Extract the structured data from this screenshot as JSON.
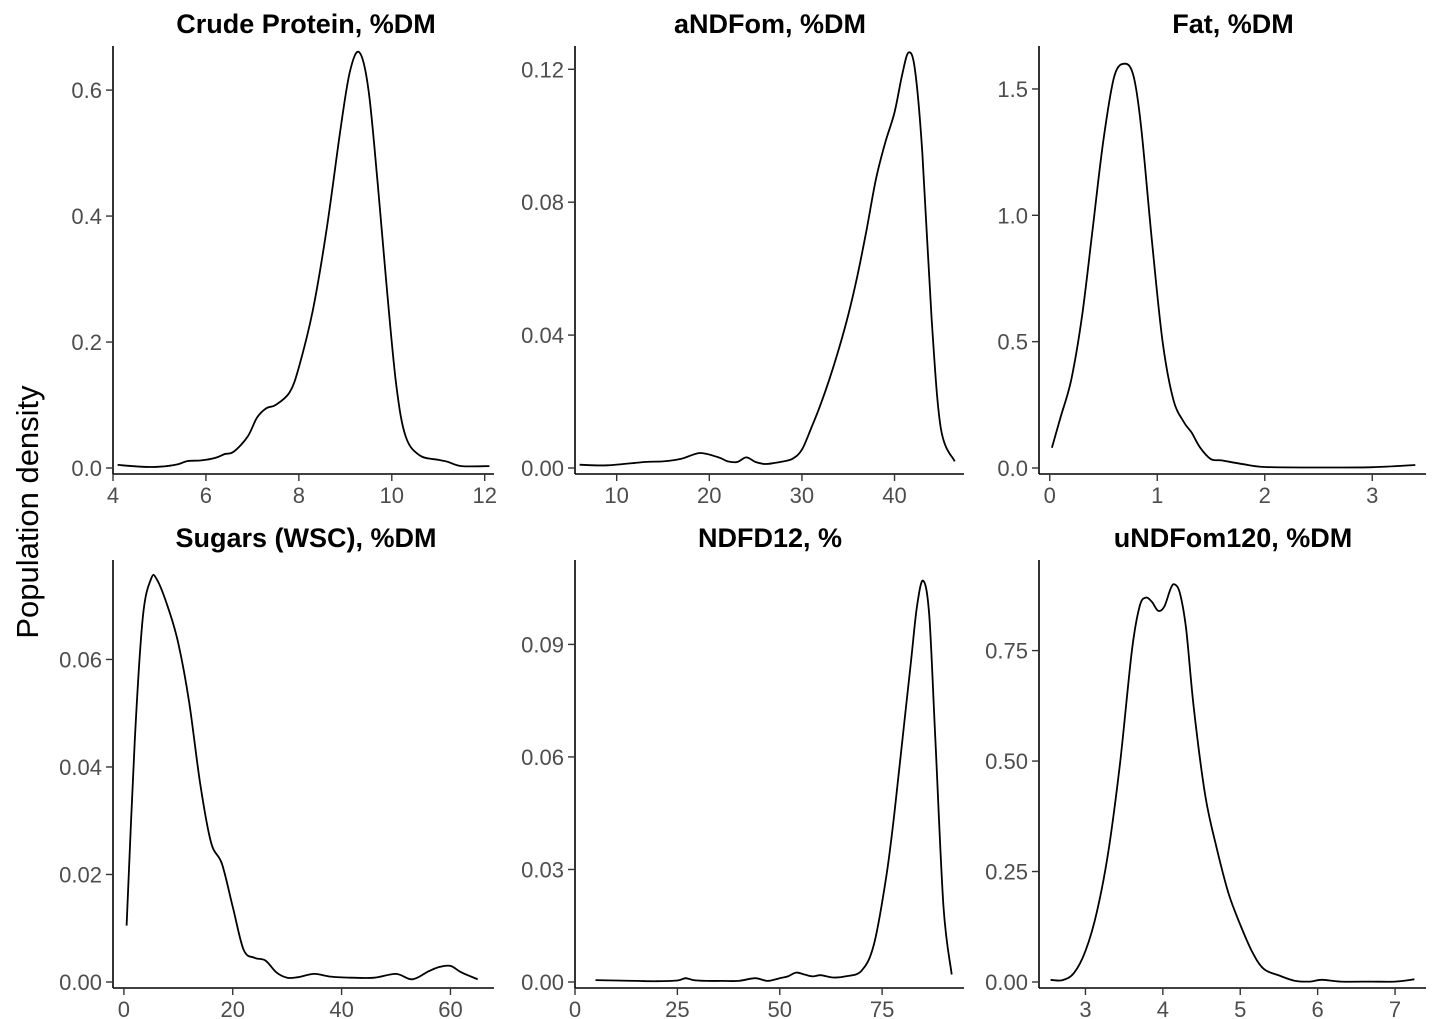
{
  "figure": {
    "ylabel": "Population density"
  },
  "chart_data": [
    {
      "type": "line",
      "title": "Crude Protein, %DM",
      "xlim": [
        4.0,
        12.2
      ],
      "ylim": [
        0.0,
        0.67
      ],
      "x_ticks": [
        4,
        6,
        8,
        10,
        12
      ],
      "x_tick_labels": [
        "4",
        "6",
        "8",
        "10",
        "12"
      ],
      "y_ticks": [
        0.0,
        0.2,
        0.4,
        0.6
      ],
      "y_tick_labels": [
        "0.0",
        "0.2",
        "0.4",
        "0.6"
      ],
      "series": [
        {
          "x": [
            4.1,
            4.6,
            5.0,
            5.4,
            5.6,
            5.9,
            6.2,
            6.4,
            6.6,
            6.9,
            7.1,
            7.3,
            7.5,
            7.8,
            8.0,
            8.3,
            8.6,
            8.9,
            9.1,
            9.3,
            9.5,
            9.7,
            9.9,
            10.1,
            10.3,
            10.6,
            11.0,
            11.2,
            11.5,
            12.1
          ],
          "y": [
            0.005,
            0.002,
            0.002,
            0.006,
            0.011,
            0.012,
            0.016,
            0.022,
            0.026,
            0.05,
            0.08,
            0.095,
            0.1,
            0.12,
            0.16,
            0.25,
            0.38,
            0.54,
            0.63,
            0.66,
            0.6,
            0.45,
            0.28,
            0.13,
            0.05,
            0.02,
            0.013,
            0.01,
            0.003,
            0.003
          ]
        }
      ]
    },
    {
      "type": "line",
      "title": "aNDFom, %DM",
      "xlim": [
        5.5,
        47.5
      ],
      "ylim": [
        0.0,
        0.127
      ],
      "x_ticks": [
        10,
        20,
        30,
        40
      ],
      "x_tick_labels": [
        "10",
        "20",
        "30",
        "40"
      ],
      "y_ticks": [
        0.0,
        0.04,
        0.08,
        0.12
      ],
      "y_tick_labels": [
        "0.00",
        "0.04",
        "0.08",
        "0.12"
      ],
      "series": [
        {
          "x": [
            6,
            9,
            13,
            15,
            17,
            19,
            21,
            22,
            23,
            24,
            25,
            26,
            27,
            28,
            29,
            30,
            31,
            32,
            33,
            34,
            35,
            36,
            37,
            38,
            39,
            40,
            40.8,
            41.5,
            42.2,
            43,
            44,
            45,
            46.5
          ],
          "y": [
            0.001,
            0.0008,
            0.0018,
            0.002,
            0.0028,
            0.0045,
            0.0032,
            0.002,
            0.0018,
            0.0032,
            0.0018,
            0.0012,
            0.0015,
            0.002,
            0.0028,
            0.0055,
            0.012,
            0.019,
            0.027,
            0.036,
            0.046,
            0.058,
            0.072,
            0.087,
            0.098,
            0.107,
            0.118,
            0.125,
            0.12,
            0.095,
            0.045,
            0.012,
            0.002
          ]
        }
      ]
    },
    {
      "type": "line",
      "title": "Fat, %DM",
      "xlim": [
        -0.1,
        3.5
      ],
      "ylim": [
        0.0,
        1.67
      ],
      "x_ticks": [
        0,
        1,
        2,
        3
      ],
      "x_tick_labels": [
        "0",
        "1",
        "2",
        "3"
      ],
      "y_ticks": [
        0.0,
        0.5,
        1.0,
        1.5
      ],
      "y_tick_labels": [
        "0.0",
        "0.5",
        "1.0",
        "1.5"
      ],
      "series": [
        {
          "x": [
            0.02,
            0.1,
            0.2,
            0.3,
            0.4,
            0.5,
            0.6,
            0.7,
            0.78,
            0.85,
            0.95,
            1.05,
            1.15,
            1.25,
            1.32,
            1.4,
            1.5,
            1.6,
            1.8,
            2.0,
            2.5,
            3.0,
            3.4
          ],
          "y": [
            0.08,
            0.2,
            0.35,
            0.6,
            0.95,
            1.3,
            1.55,
            1.6,
            1.55,
            1.35,
            0.9,
            0.5,
            0.27,
            0.18,
            0.14,
            0.08,
            0.035,
            0.03,
            0.015,
            0.004,
            0.002,
            0.003,
            0.012
          ]
        }
      ]
    },
    {
      "type": "line",
      "title": "Sugars (WSC), %DM",
      "xlim": [
        -2.0,
        68.0
      ],
      "ylim": [
        0.0,
        0.0785
      ],
      "x_ticks": [
        0,
        20,
        40,
        60
      ],
      "x_tick_labels": [
        "0",
        "20",
        "40",
        "60"
      ],
      "y_ticks": [
        0.0,
        0.02,
        0.04,
        0.06
      ],
      "y_tick_labels": [
        "0.00",
        "0.02",
        "0.04",
        "0.06"
      ],
      "series": [
        {
          "x": [
            0.5,
            2,
            3.5,
            5,
            6,
            8,
            10,
            12,
            14,
            16,
            18,
            20,
            22,
            24,
            26,
            28,
            30,
            32,
            35,
            38,
            42,
            46,
            50,
            53,
            56,
            58,
            60,
            62,
            65
          ],
          "y": [
            0.0105,
            0.045,
            0.068,
            0.075,
            0.075,
            0.07,
            0.063,
            0.052,
            0.037,
            0.026,
            0.022,
            0.014,
            0.006,
            0.0045,
            0.004,
            0.0018,
            0.0008,
            0.0009,
            0.0015,
            0.001,
            0.0008,
            0.0008,
            0.0015,
            0.0005,
            0.002,
            0.0028,
            0.003,
            0.0018,
            0.0005
          ]
        }
      ]
    },
    {
      "type": "line",
      "title": "NDFD12, %",
      "xlim": [
        0.0,
        95.0
      ],
      "ylim": [
        0.0,
        0.1125
      ],
      "x_ticks": [
        0,
        25,
        50,
        75
      ],
      "x_tick_labels": [
        "0",
        "25",
        "50",
        "75"
      ],
      "y_ticks": [
        0.0,
        0.03,
        0.06,
        0.09
      ],
      "y_tick_labels": [
        "0.00",
        "0.03",
        "0.06",
        "0.09"
      ],
      "series": [
        {
          "x": [
            5,
            10,
            15,
            20,
            25,
            27,
            29,
            32,
            36,
            40,
            44,
            47,
            50,
            52,
            54,
            56,
            58,
            60,
            63,
            66,
            70,
            73,
            76,
            78,
            80,
            82,
            83.5,
            85,
            86.5,
            88,
            90,
            92
          ],
          "y": [
            0.0005,
            0.0004,
            0.0003,
            0.0002,
            0.0004,
            0.001,
            0.0005,
            0.0003,
            0.0003,
            0.0003,
            0.001,
            0.0003,
            0.001,
            0.0015,
            0.0025,
            0.002,
            0.0015,
            0.0018,
            0.0012,
            0.0015,
            0.003,
            0.01,
            0.028,
            0.045,
            0.065,
            0.085,
            0.1,
            0.107,
            0.098,
            0.065,
            0.02,
            0.002
          ]
        }
      ]
    },
    {
      "type": "line",
      "title": "uNDFom120, %DM",
      "xlim": [
        2.4,
        7.4
      ],
      "ylim": [
        0.0,
        0.955
      ],
      "x_ticks": [
        3,
        4,
        5,
        6,
        7
      ],
      "x_tick_labels": [
        "3",
        "4",
        "5",
        "6",
        "7"
      ],
      "y_ticks": [
        0.0,
        0.25,
        0.5,
        0.75
      ],
      "y_tick_labels": [
        "0.00",
        "0.25",
        "0.50",
        "0.75"
      ],
      "series": [
        {
          "x": [
            2.55,
            2.7,
            2.85,
            3.0,
            3.15,
            3.3,
            3.45,
            3.6,
            3.7,
            3.78,
            3.86,
            3.94,
            4.02,
            4.1,
            4.15,
            4.22,
            4.3,
            4.4,
            4.55,
            4.7,
            4.85,
            5.0,
            5.15,
            5.3,
            5.5,
            5.7,
            5.9,
            6.05,
            6.3,
            6.7,
            7.0,
            7.25
          ],
          "y": [
            0.005,
            0.004,
            0.02,
            0.07,
            0.16,
            0.3,
            0.5,
            0.75,
            0.85,
            0.87,
            0.86,
            0.84,
            0.85,
            0.89,
            0.9,
            0.88,
            0.8,
            0.62,
            0.42,
            0.3,
            0.2,
            0.13,
            0.07,
            0.03,
            0.015,
            0.003,
            0.001,
            0.005,
            0.001,
            0.001,
            0.001,
            0.006
          ]
        }
      ]
    }
  ]
}
